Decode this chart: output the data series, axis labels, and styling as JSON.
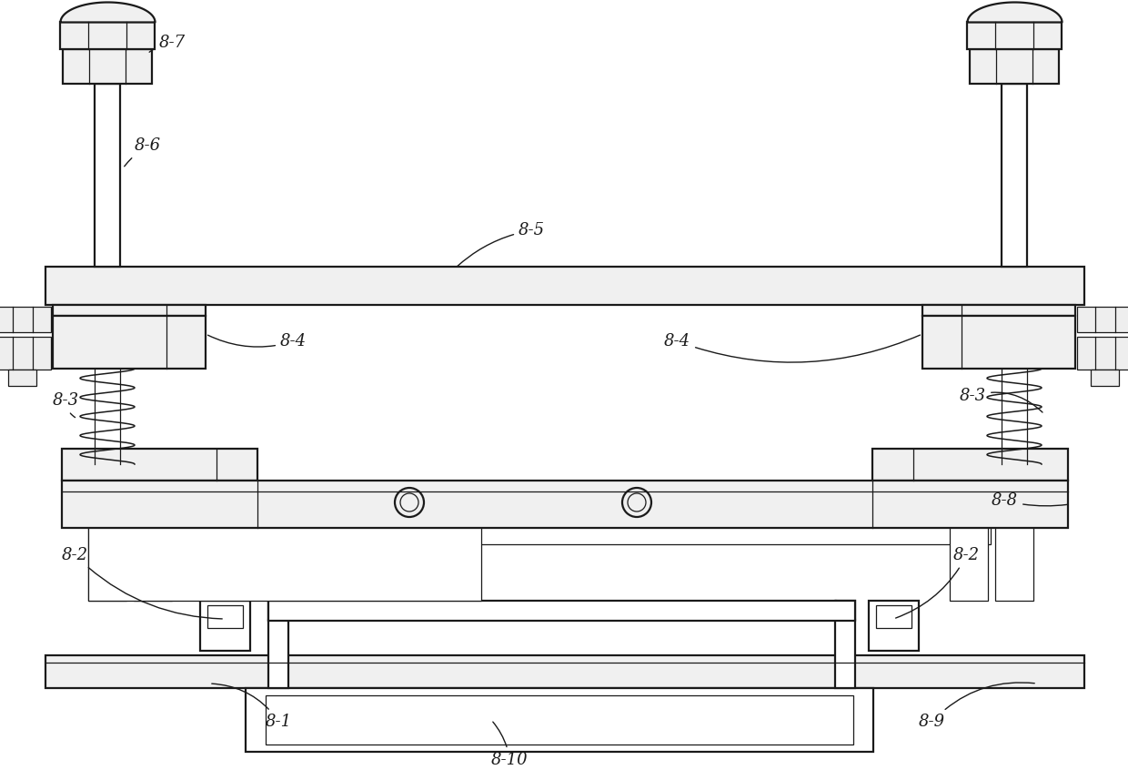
{
  "bg_color": "#ffffff",
  "line_color": "#1a1a1a",
  "fig_width": 12.4,
  "fig_height": 8.57,
  "lw_main": 1.6,
  "lw_thin": 0.9,
  "label_fs": 13
}
